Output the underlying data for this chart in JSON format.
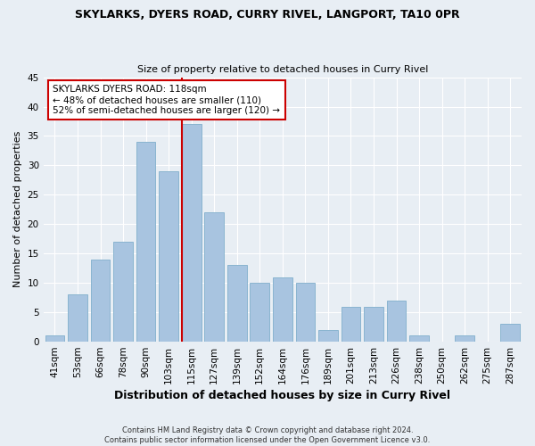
{
  "title": "SKYLARKS, DYERS ROAD, CURRY RIVEL, LANGPORT, TA10 0PR",
  "subtitle": "Size of property relative to detached houses in Curry Rivel",
  "xlabel": "Distribution of detached houses by size in Curry Rivel",
  "ylabel": "Number of detached properties",
  "footer1": "Contains HM Land Registry data © Crown copyright and database right 2024.",
  "footer2": "Contains public sector information licensed under the Open Government Licence v3.0.",
  "bar_labels": [
    "41sqm",
    "53sqm",
    "66sqm",
    "78sqm",
    "90sqm",
    "103sqm",
    "115sqm",
    "127sqm",
    "139sqm",
    "152sqm",
    "164sqm",
    "176sqm",
    "189sqm",
    "201sqm",
    "213sqm",
    "226sqm",
    "238sqm",
    "250sqm",
    "262sqm",
    "275sqm",
    "287sqm"
  ],
  "bar_values": [
    1,
    8,
    14,
    17,
    34,
    29,
    37,
    22,
    13,
    10,
    11,
    10,
    2,
    6,
    6,
    7,
    1,
    0,
    1,
    0,
    3
  ],
  "bar_color": "#a8c4e0",
  "bar_edge_color": "#8ab4d0",
  "highlight_bar_index": 6,
  "red_line_index": 6,
  "ylim": [
    0,
    45
  ],
  "yticks": [
    0,
    5,
    10,
    15,
    20,
    25,
    30,
    35,
    40,
    45
  ],
  "annotation_title": "SKYLARKS DYERS ROAD: 118sqm",
  "annotation_line1": "← 48% of detached houses are smaller (110)",
  "annotation_line2": "52% of semi-detached houses are larger (120) →",
  "annotation_box_color": "#ffffff",
  "annotation_border_color": "#cc0000",
  "bg_color": "#e8eef4",
  "grid_color": "#ffffff",
  "title_fontsize": 9,
  "subtitle_fontsize": 8,
  "ylabel_fontsize": 8,
  "xlabel_fontsize": 9,
  "tick_fontsize": 7.5,
  "annotation_fontsize": 7.5,
  "footer_fontsize": 6
}
